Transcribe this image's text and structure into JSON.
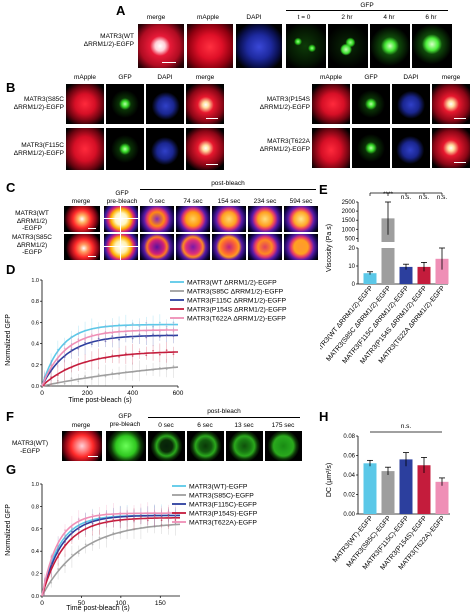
{
  "panels": {
    "A": "A",
    "B": "B",
    "C": "C",
    "D": "D",
    "E": "E",
    "F": "F",
    "G": "G",
    "H": "H"
  },
  "panelA": {
    "row_label": [
      "MATR3(WT",
      "ΔRRM1/2)-EGFP"
    ],
    "channels": [
      "merge",
      "mApple",
      "DAPI"
    ],
    "gfp_header": "GFP",
    "timepoints": [
      "t = 0",
      "2 hr",
      "4 hr",
      "6 hr"
    ]
  },
  "panelB": {
    "channels": [
      "mApple",
      "GFP",
      "DAPI",
      "merge"
    ],
    "rows_left": [
      [
        "MATR3(S85C",
        "ΔRRM1/2)-EGFP"
      ],
      [
        "MATR3(F115C",
        "ΔRRM1/2)-EGFP"
      ]
    ],
    "rows_right": [
      [
        "MATR3(P154S",
        "ΔRRM1/2)-EGFP"
      ],
      [
        "MATR3(T622A",
        "ΔRRM1/2)-EGFP"
      ]
    ]
  },
  "panelC": {
    "merge": "merge",
    "gfp_pre": [
      "GFP",
      "pre-bleach"
    ],
    "post_bleach": "post-bleach",
    "times": [
      "0 sec",
      "74 sec",
      "154 sec",
      "234 sec",
      "594 sec"
    ],
    "rows": [
      [
        "MATR3(WT",
        "ΔRRM1/2)",
        "-EGFP"
      ],
      [
        "MATR3(S85C",
        "ΔRRM1/2)",
        "-EGFP"
      ]
    ]
  },
  "panelF": {
    "merge": "merge",
    "gfp_pre": [
      "GFP",
      "pre-bleach"
    ],
    "post_bleach": "post-bleach",
    "times": [
      "0 sec",
      "6 sec",
      "13 sec",
      "175 sec"
    ],
    "row": [
      "MATR3(WT)",
      "-EGFP"
    ]
  },
  "colors": {
    "wt": "#5bc8e8",
    "s85c": "#9e9e9e",
    "f115c": "#2c3f9e",
    "p154s": "#c41c3c",
    "t622a": "#ef8fb6"
  },
  "chart_data": [
    {
      "id": "D",
      "type": "line",
      "xlabel": "Time post-bleach (s)",
      "ylabel": "Normalized GFP",
      "xlim": [
        0,
        600
      ],
      "ylim": [
        0,
        1.0
      ],
      "xticks": [
        0,
        200,
        400,
        600
      ],
      "yticks": [
        0.0,
        0.2,
        0.4,
        0.6,
        0.8,
        1.0
      ],
      "ytick_labels": [
        "0.0",
        "0.2",
        "0.4",
        "0.6",
        "0.8",
        "1.0"
      ],
      "legend_position": "top-right",
      "series": [
        {
          "name": "MATR3(WT ΔRRM1/2)-EGFP",
          "color": "#5bc8e8",
          "plateau": 0.58,
          "k": 0.012
        },
        {
          "name": "MATR3(S85C ΔRRM1/2)-EGFP",
          "color": "#9e9e9e",
          "plateau": 0.3,
          "k": 0.0015
        },
        {
          "name": "MATR3(F115C ΔRRM1/2)-EGFP",
          "color": "#2c3f9e",
          "plateau": 0.48,
          "k": 0.009
        },
        {
          "name": "MATR3(P154S ΔRRM1/2)-EGFP",
          "color": "#c41c3c",
          "plateau": 0.33,
          "k": 0.006
        },
        {
          "name": "MATR3(T622A ΔRRM1/2)-EGFP",
          "color": "#ef8fb6",
          "plateau": 0.53,
          "k": 0.01
        }
      ]
    },
    {
      "id": "E",
      "type": "bar",
      "ylabel": "Viscosity (Pa s)",
      "categories": [
        "MATR3(WT ΔRRM1/2)-EGFP",
        "MATR3(S85C ΔRRM1/2)-EGFP",
        "MATR3(F115C ΔRRM1/2)-EGFP",
        "MATR3(P154S ΔRRM1/2)-EGFP",
        "MATR3(T622A ΔRRM1/2)-EGFP"
      ],
      "values": [
        6,
        1600,
        9.5,
        9.5,
        14
      ],
      "errors": [
        0.8,
        900,
        1.5,
        2.5,
        6
      ],
      "colors": [
        "#5bc8e8",
        "#9e9e9e",
        "#2c3f9e",
        "#c41c3c",
        "#ef8fb6"
      ],
      "broken_axis": {
        "upper_ticks": [
          500,
          1000,
          1500,
          2000,
          2500
        ],
        "lower_ticks": [
          0,
          10,
          20
        ]
      },
      "significance": [
        "",
        "****",
        "n.s.",
        "n.s.",
        "n.s."
      ]
    },
    {
      "id": "G",
      "type": "line",
      "xlabel": "Time post-bleach (s)",
      "ylabel": "Normalized GFP",
      "xlim": [
        0,
        175
      ],
      "ylim": [
        0,
        1.0
      ],
      "xticks": [
        0,
        50,
        100,
        150
      ],
      "yticks": [
        0.0,
        0.2,
        0.4,
        0.6,
        0.8,
        1.0
      ],
      "ytick_labels": [
        "0.0",
        "0.2",
        "0.4",
        "0.6",
        "0.8",
        "1.0"
      ],
      "legend_position": "top-right",
      "series": [
        {
          "name": "MATR3(WT)-EGFP",
          "color": "#5bc8e8",
          "plateau": 0.72,
          "k": 0.045
        },
        {
          "name": "MATR3(S85C)-EGFP",
          "color": "#9e9e9e",
          "plateau": 0.66,
          "k": 0.02
        },
        {
          "name": "MATR3(F115C)-EGFP",
          "color": "#2c3f9e",
          "plateau": 0.72,
          "k": 0.04
        },
        {
          "name": "MATR3(P154S)-EGFP",
          "color": "#c41c3c",
          "plateau": 0.7,
          "k": 0.035
        },
        {
          "name": "MATR3(T622A)-EGFP",
          "color": "#ef8fb6",
          "plateau": 0.74,
          "k": 0.05
        }
      ]
    },
    {
      "id": "H",
      "type": "bar",
      "ylabel": "DC (μm²/s)",
      "ylim": [
        0,
        0.08
      ],
      "yticks": [
        0.0,
        0.02,
        0.04,
        0.06,
        0.08
      ],
      "ytick_labels": [
        "0.00",
        "0.02",
        "0.04",
        "0.06",
        "0.08"
      ],
      "categories": [
        "MATR3(WT)-EGFP",
        "MATR3(S85C)-EGFP",
        "MATR3(F115C)-EGFP",
        "MATR3(P154S)-EGFP",
        "MATR3(T622A)-EGFP"
      ],
      "values": [
        0.052,
        0.044,
        0.056,
        0.05,
        0.033
      ],
      "errors": [
        0.003,
        0.004,
        0.007,
        0.008,
        0.004
      ],
      "colors": [
        "#5bc8e8",
        "#9e9e9e",
        "#2c3f9e",
        "#c41c3c",
        "#ef8fb6"
      ],
      "significance": "n.s."
    }
  ]
}
